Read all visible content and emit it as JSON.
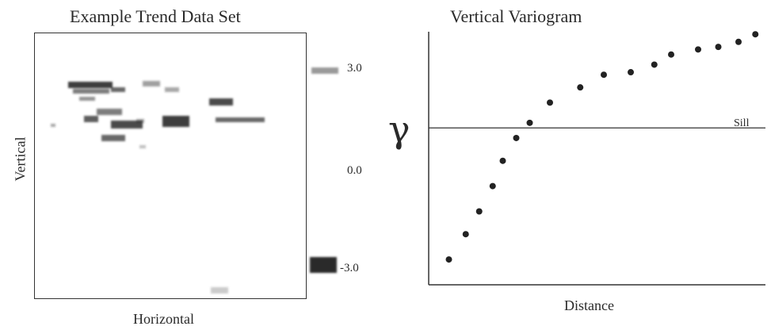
{
  "chart_data": [
    {
      "type": "heatmap",
      "title": "Example Trend Data Set",
      "xlabel": "Horizontal",
      "ylabel": "Vertical",
      "colorbar": {
        "ticks": [
          "3.0",
          "0.0",
          "-3.0"
        ]
      },
      "palette": {
        "high": "#222222",
        "low": "#ffffff"
      }
    },
    {
      "type": "scatter",
      "title": "Vertical Variogram",
      "xlabel": "Distance",
      "ylabel": "γ",
      "annotations": [
        "Sill"
      ],
      "sill": 0.62,
      "ylim": [
        0,
        1
      ],
      "xlim": [
        0,
        1
      ],
      "x": [
        0.06,
        0.11,
        0.15,
        0.19,
        0.22,
        0.26,
        0.3,
        0.36,
        0.45,
        0.52,
        0.6,
        0.67,
        0.72,
        0.8,
        0.86,
        0.92,
        0.97
      ],
      "y": [
        0.1,
        0.2,
        0.29,
        0.39,
        0.49,
        0.58,
        0.64,
        0.72,
        0.78,
        0.83,
        0.84,
        0.87,
        0.91,
        0.93,
        0.94,
        0.96,
        0.99
      ],
      "point_color": "#222222"
    }
  ]
}
